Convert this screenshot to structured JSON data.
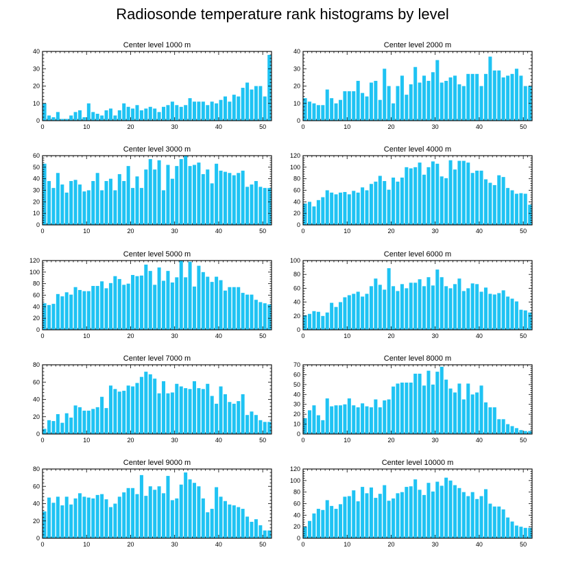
{
  "title": "Radiosonde temperature rank histograms by level",
  "colors": {
    "bar": "#1fc3f3",
    "bar_edge": "#ffffff",
    "axis": "#000000",
    "background": "#ffffff"
  },
  "chart_data": [
    {
      "type": "bar",
      "title": "Center level 1000 m",
      "x": [
        0,
        1,
        2,
        3,
        4,
        5,
        6,
        7,
        8,
        9,
        10,
        11,
        12,
        13,
        14,
        15,
        16,
        17,
        18,
        19,
        20,
        21,
        22,
        23,
        24,
        25,
        26,
        27,
        28,
        29,
        30,
        31,
        32,
        33,
        34,
        35,
        36,
        37,
        38,
        39,
        40,
        41,
        42,
        43,
        44,
        45,
        46,
        47,
        48,
        49,
        50,
        51
      ],
      "values": [
        10,
        3,
        2,
        5,
        1,
        1,
        3,
        5,
        6,
        2,
        10,
        5,
        4,
        3,
        6,
        7,
        3,
        6,
        10,
        8,
        7,
        9,
        6,
        7,
        8,
        7,
        5,
        8,
        9,
        11,
        9,
        8,
        9,
        13,
        11,
        11,
        11,
        9,
        11,
        10,
        12,
        14,
        11,
        15,
        14,
        19,
        22,
        18,
        20,
        20,
        14,
        38
      ],
      "xlim": [
        0,
        52
      ],
      "ylim": [
        0,
        40
      ],
      "xticks": [
        0,
        10,
        20,
        30,
        40,
        50
      ],
      "yticks": [
        0,
        10,
        20,
        30,
        40
      ],
      "xlabel": "",
      "ylabel": ""
    },
    {
      "type": "bar",
      "title": "Center level 2000 m",
      "x": [
        0,
        1,
        2,
        3,
        4,
        5,
        6,
        7,
        8,
        9,
        10,
        11,
        12,
        13,
        14,
        15,
        16,
        17,
        18,
        19,
        20,
        21,
        22,
        23,
        24,
        25,
        26,
        27,
        28,
        29,
        30,
        31,
        32,
        33,
        34,
        35,
        36,
        37,
        38,
        39,
        40,
        41,
        42,
        43,
        44,
        45,
        46,
        47,
        48,
        49,
        50,
        51
      ],
      "values": [
        13,
        11,
        10,
        9,
        9,
        18,
        13,
        10,
        12,
        17,
        17,
        17,
        23,
        16,
        14,
        22,
        23,
        12,
        30,
        20,
        10,
        20,
        26,
        15,
        21,
        31,
        22,
        26,
        23,
        28,
        35,
        22,
        23,
        25,
        26,
        21,
        20,
        27,
        27,
        27,
        20,
        27,
        37,
        29,
        29,
        25,
        26,
        27,
        30,
        26,
        20,
        20
      ],
      "xlim": [
        0,
        52
      ],
      "ylim": [
        0,
        40
      ],
      "xticks": [
        0,
        10,
        20,
        30,
        40,
        50
      ],
      "yticks": [
        0,
        10,
        20,
        30,
        40
      ],
      "xlabel": "",
      "ylabel": ""
    },
    {
      "type": "bar",
      "title": "Center level 3000 m",
      "x": [
        0,
        1,
        2,
        3,
        4,
        5,
        6,
        7,
        8,
        9,
        10,
        11,
        12,
        13,
        14,
        15,
        16,
        17,
        18,
        19,
        20,
        21,
        22,
        23,
        24,
        25,
        26,
        27,
        28,
        29,
        30,
        31,
        32,
        33,
        34,
        35,
        36,
        37,
        38,
        39,
        40,
        41,
        42,
        43,
        44,
        45,
        46,
        47,
        48,
        49,
        50,
        51
      ],
      "values": [
        53,
        38,
        32,
        45,
        35,
        28,
        38,
        39,
        35,
        29,
        30,
        38,
        45,
        30,
        38,
        40,
        30,
        44,
        38,
        51,
        32,
        42,
        32,
        48,
        57,
        48,
        56,
        30,
        52,
        40,
        51,
        57,
        60,
        51,
        52,
        54,
        44,
        48,
        36,
        53,
        47,
        46,
        45,
        43,
        45,
        47,
        33,
        35,
        38,
        33,
        32,
        32
      ],
      "xlim": [
        0,
        52
      ],
      "ylim": [
        0,
        60
      ],
      "xticks": [
        0,
        10,
        20,
        30,
        40,
        50
      ],
      "yticks": [
        0,
        10,
        20,
        30,
        40,
        50,
        60
      ],
      "xlabel": "",
      "ylabel": ""
    },
    {
      "type": "bar",
      "title": "Center level 4000 m",
      "x": [
        0,
        1,
        2,
        3,
        4,
        5,
        6,
        7,
        8,
        9,
        10,
        11,
        12,
        13,
        14,
        15,
        16,
        17,
        18,
        19,
        20,
        21,
        22,
        23,
        24,
        25,
        26,
        27,
        28,
        29,
        30,
        31,
        32,
        33,
        34,
        35,
        36,
        37,
        38,
        39,
        40,
        41,
        42,
        43,
        44,
        45,
        46,
        47,
        48,
        49,
        50,
        51
      ],
      "values": [
        37,
        40,
        32,
        43,
        48,
        60,
        56,
        53,
        56,
        57,
        53,
        59,
        56,
        65,
        60,
        71,
        75,
        85,
        76,
        61,
        82,
        75,
        82,
        100,
        98,
        100,
        108,
        87,
        100,
        110,
        106,
        84,
        81,
        112,
        96,
        111,
        111,
        108,
        90,
        94,
        94,
        79,
        73,
        69,
        86,
        83,
        64,
        60,
        54,
        55,
        54,
        35
      ],
      "xlim": [
        0,
        52
      ],
      "ylim": [
        0,
        120
      ],
      "xticks": [
        0,
        10,
        20,
        30,
        40,
        50
      ],
      "yticks": [
        0,
        20,
        40,
        60,
        80,
        100,
        120
      ],
      "xlabel": "",
      "ylabel": ""
    },
    {
      "type": "bar",
      "title": "Center level 5000 m",
      "x": [
        0,
        1,
        2,
        3,
        4,
        5,
        6,
        7,
        8,
        9,
        10,
        11,
        12,
        13,
        14,
        15,
        16,
        17,
        18,
        19,
        20,
        21,
        22,
        23,
        24,
        25,
        26,
        27,
        28,
        29,
        30,
        31,
        32,
        33,
        34,
        35,
        36,
        37,
        38,
        39,
        40,
        41,
        42,
        43,
        44,
        45,
        46,
        47,
        48,
        49,
        50,
        51
      ],
      "values": [
        46,
        43,
        45,
        62,
        58,
        65,
        61,
        74,
        69,
        67,
        67,
        76,
        76,
        84,
        72,
        81,
        93,
        88,
        78,
        80,
        95,
        93,
        94,
        113,
        102,
        78,
        108,
        85,
        102,
        82,
        91,
        120,
        91,
        118,
        75,
        111,
        100,
        92,
        83,
        92,
        86,
        68,
        74,
        74,
        74,
        64,
        61,
        61,
        52,
        48,
        46,
        44
      ],
      "xlim": [
        0,
        52
      ],
      "ylim": [
        0,
        120
      ],
      "xticks": [
        0,
        10,
        20,
        30,
        40,
        50
      ],
      "yticks": [
        0,
        20,
        40,
        60,
        80,
        100,
        120
      ],
      "xlabel": "",
      "ylabel": ""
    },
    {
      "type": "bar",
      "title": "Center level 6000 m",
      "x": [
        0,
        1,
        2,
        3,
        4,
        5,
        6,
        7,
        8,
        9,
        10,
        11,
        12,
        13,
        14,
        15,
        16,
        17,
        18,
        19,
        20,
        21,
        22,
        23,
        24,
        25,
        26,
        27,
        28,
        29,
        30,
        31,
        32,
        33,
        34,
        35,
        36,
        37,
        38,
        39,
        40,
        41,
        42,
        43,
        44,
        45,
        46,
        47,
        48,
        49,
        50,
        51
      ],
      "values": [
        21,
        23,
        27,
        26,
        20,
        25,
        39,
        33,
        40,
        47,
        50,
        52,
        55,
        48,
        52,
        63,
        74,
        65,
        58,
        89,
        63,
        56,
        66,
        60,
        68,
        68,
        73,
        63,
        76,
        64,
        87,
        76,
        63,
        60,
        66,
        74,
        56,
        60,
        67,
        66,
        55,
        61,
        52,
        51,
        53,
        57,
        48,
        45,
        41,
        29,
        28,
        25
      ],
      "xlim": [
        0,
        52
      ],
      "ylim": [
        0,
        100
      ],
      "xticks": [
        0,
        10,
        20,
        30,
        40,
        50
      ],
      "yticks": [
        0,
        20,
        40,
        60,
        80,
        100
      ],
      "xlabel": "",
      "ylabel": ""
    },
    {
      "type": "bar",
      "title": "Center level 7000 m",
      "x": [
        0,
        1,
        2,
        3,
        4,
        5,
        6,
        7,
        8,
        9,
        10,
        11,
        12,
        13,
        14,
        15,
        16,
        17,
        18,
        19,
        20,
        21,
        22,
        23,
        24,
        25,
        26,
        27,
        28,
        29,
        30,
        31,
        32,
        33,
        34,
        35,
        36,
        37,
        38,
        39,
        40,
        41,
        42,
        43,
        44,
        45,
        46,
        47,
        48,
        49,
        50,
        51
      ],
      "values": [
        6,
        16,
        15,
        23,
        13,
        24,
        19,
        33,
        31,
        27,
        27,
        29,
        31,
        43,
        30,
        56,
        52,
        49,
        50,
        56,
        55,
        59,
        66,
        72,
        69,
        64,
        47,
        61,
        47,
        48,
        58,
        55,
        53,
        52,
        61,
        53,
        52,
        58,
        44,
        35,
        55,
        46,
        37,
        35,
        38,
        46,
        22,
        26,
        22,
        16,
        14,
        14
      ],
      "xlim": [
        0,
        52
      ],
      "ylim": [
        0,
        80
      ],
      "xticks": [
        0,
        10,
        20,
        30,
        40,
        50
      ],
      "yticks": [
        0,
        20,
        40,
        60,
        80
      ],
      "xlabel": "",
      "ylabel": ""
    },
    {
      "type": "bar",
      "title": "Center level 8000 m",
      "x": [
        0,
        1,
        2,
        3,
        4,
        5,
        6,
        7,
        8,
        9,
        10,
        11,
        12,
        13,
        14,
        15,
        16,
        17,
        18,
        19,
        20,
        21,
        22,
        23,
        24,
        25,
        26,
        27,
        28,
        29,
        30,
        31,
        32,
        33,
        34,
        35,
        36,
        37,
        38,
        39,
        40,
        41,
        42,
        43,
        44,
        45,
        46,
        47,
        48,
        49,
        50,
        51
      ],
      "values": [
        16,
        24,
        29,
        19,
        14,
        36,
        28,
        29,
        29,
        30,
        36,
        29,
        27,
        31,
        28,
        27,
        35,
        27,
        34,
        35,
        48,
        51,
        52,
        52,
        52,
        61,
        61,
        49,
        64,
        50,
        63,
        68,
        55,
        46,
        42,
        51,
        35,
        51,
        40,
        42,
        49,
        32,
        27,
        27,
        15,
        15,
        10,
        8,
        6,
        4,
        3,
        3
      ],
      "xlim": [
        0,
        52
      ],
      "ylim": [
        0,
        70
      ],
      "xticks": [
        0,
        10,
        20,
        30,
        40,
        50
      ],
      "yticks": [
        0,
        10,
        20,
        30,
        40,
        50,
        60,
        70
      ],
      "xlabel": "",
      "ylabel": ""
    },
    {
      "type": "bar",
      "title": "Center level 9000 m",
      "x": [
        0,
        1,
        2,
        3,
        4,
        5,
        6,
        7,
        8,
        9,
        10,
        11,
        12,
        13,
        14,
        15,
        16,
        17,
        18,
        19,
        20,
        21,
        22,
        23,
        24,
        25,
        26,
        27,
        28,
        29,
        30,
        31,
        32,
        33,
        34,
        35,
        36,
        37,
        38,
        39,
        40,
        41,
        42,
        43,
        44,
        45,
        46,
        47,
        48,
        49,
        50,
        51
      ],
      "values": [
        31,
        47,
        41,
        48,
        38,
        48,
        39,
        46,
        52,
        48,
        47,
        46,
        50,
        51,
        45,
        36,
        40,
        48,
        53,
        58,
        58,
        51,
        73,
        49,
        60,
        56,
        60,
        52,
        72,
        44,
        46,
        62,
        76,
        68,
        64,
        60,
        46,
        30,
        34,
        59,
        48,
        43,
        39,
        38,
        36,
        34,
        25,
        19,
        22,
        15,
        9,
        9
      ],
      "xlim": [
        0,
        52
      ],
      "ylim": [
        0,
        80
      ],
      "xticks": [
        0,
        10,
        20,
        30,
        40,
        50
      ],
      "yticks": [
        0,
        20,
        40,
        60,
        80
      ],
      "xlabel": "",
      "ylabel": ""
    },
    {
      "type": "bar",
      "title": "Center level 10000 m",
      "x": [
        0,
        1,
        2,
        3,
        4,
        5,
        6,
        7,
        8,
        9,
        10,
        11,
        12,
        13,
        14,
        15,
        16,
        17,
        18,
        19,
        20,
        21,
        22,
        23,
        24,
        25,
        26,
        27,
        28,
        29,
        30,
        31,
        32,
        33,
        34,
        35,
        36,
        37,
        38,
        39,
        40,
        41,
        42,
        43,
        44,
        45,
        46,
        47,
        48,
        49,
        50,
        51
      ],
      "values": [
        20,
        30,
        43,
        51,
        49,
        66,
        56,
        51,
        59,
        72,
        73,
        83,
        64,
        89,
        78,
        88,
        70,
        77,
        92,
        65,
        69,
        78,
        80,
        89,
        90,
        102,
        84,
        75,
        96,
        81,
        98,
        91,
        105,
        100,
        92,
        87,
        80,
        73,
        80,
        68,
        73,
        85,
        60,
        55,
        55,
        50,
        36,
        29,
        22,
        20,
        18,
        18
      ],
      "xlim": [
        0,
        52
      ],
      "ylim": [
        0,
        120
      ],
      "xticks": [
        0,
        10,
        20,
        30,
        40,
        50
      ],
      "yticks": [
        0,
        20,
        40,
        60,
        80,
        100,
        120
      ],
      "xlabel": "",
      "ylabel": ""
    }
  ]
}
